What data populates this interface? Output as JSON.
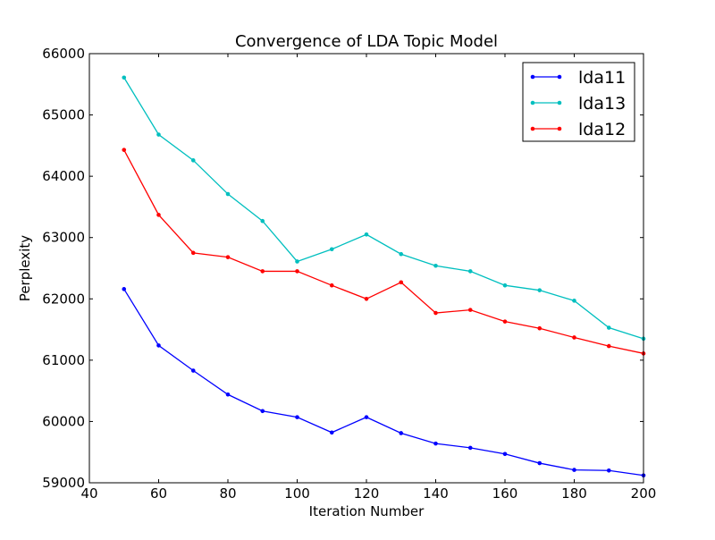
{
  "chart_data": {
    "type": "line",
    "title": "Convergence of LDA Topic Model",
    "xlabel": "Iteration Number",
    "ylabel": "Perplexity",
    "xlim": [
      40,
      200
    ],
    "ylim": [
      59000,
      66000
    ],
    "xticks": [
      40,
      60,
      80,
      100,
      120,
      140,
      160,
      180,
      200
    ],
    "yticks": [
      59000,
      60000,
      61000,
      62000,
      63000,
      64000,
      65000,
      66000
    ],
    "grid": false,
    "legend_position": "top-right",
    "x": [
      50,
      60,
      70,
      80,
      90,
      100,
      110,
      120,
      130,
      140,
      150,
      160,
      170,
      180,
      190,
      200
    ],
    "series": [
      {
        "name": "lda11",
        "color": "#0000ff",
        "values": [
          62160,
          61240,
          60830,
          60440,
          60170,
          60070,
          59820,
          60070,
          59810,
          59640,
          59570,
          59470,
          59320,
          59210,
          59200,
          59120
        ]
      },
      {
        "name": "lda13",
        "color": "#00bfbf",
        "values": [
          65610,
          64680,
          64260,
          63710,
          63270,
          62610,
          62810,
          63050,
          62730,
          62540,
          62450,
          62220,
          62140,
          61970,
          61530,
          61350
        ]
      },
      {
        "name": "lda12",
        "color": "#ff0000",
        "values": [
          64430,
          63370,
          62750,
          62680,
          62450,
          62450,
          62220,
          62000,
          62270,
          61770,
          61820,
          61630,
          61520,
          61370,
          61230,
          61110
        ]
      }
    ]
  }
}
